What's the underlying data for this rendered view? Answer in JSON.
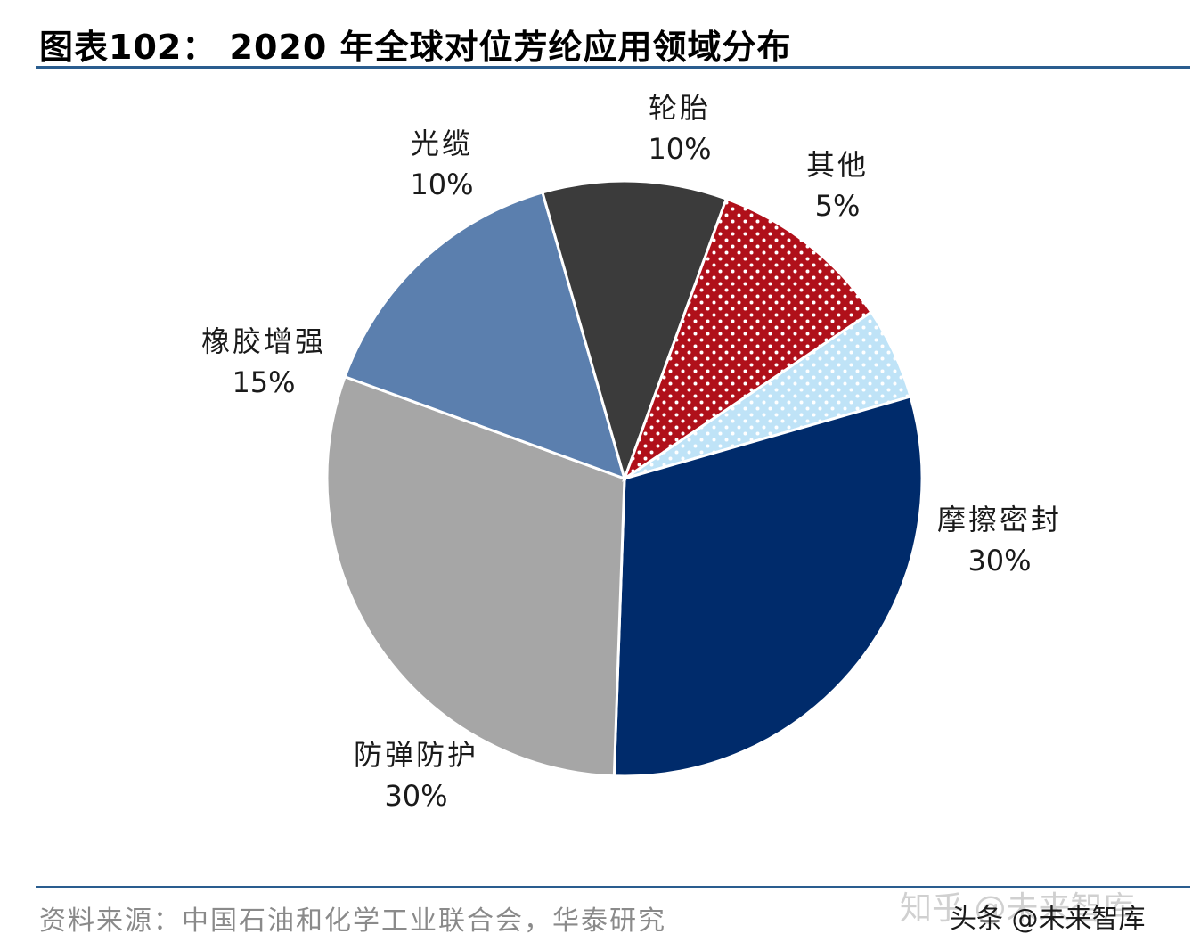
{
  "title": "图表102： 2020 年全球对位芳纶应用领域分布",
  "source": "资料来源：中国石油和化学工业联合会，华泰研究",
  "watermark": {
    "back": "知乎 @未来智库",
    "front": "头条 @未来智库"
  },
  "colors": {
    "rule": "#2a5d8f",
    "source_text": "#8a8a8a"
  },
  "chart_data": {
    "type": "pie",
    "title": "图表102： 2020 年全球对位芳纶应用领域分布",
    "slices": [
      {
        "label": "其他",
        "value": 5,
        "value_label": "5%",
        "color": "#bfe3f7",
        "pattern": "dots-white"
      },
      {
        "label": "摩擦密封",
        "value": 30,
        "value_label": "30%",
        "color": "#002b6b",
        "pattern": "solid"
      },
      {
        "label": "防弹防护",
        "value": 30,
        "value_label": "30%",
        "color": "#a6a6a6",
        "pattern": "solid"
      },
      {
        "label": "橡胶增强",
        "value": 15,
        "value_label": "15%",
        "color": "#5b7fae",
        "pattern": "solid"
      },
      {
        "label": "光缆",
        "value": 10,
        "value_label": "10%",
        "color": "#3b3b3b",
        "pattern": "solid"
      },
      {
        "label": "轮胎",
        "value": 10,
        "value_label": "10%",
        "color": "#b0101a",
        "pattern": "dots-white"
      }
    ]
  }
}
